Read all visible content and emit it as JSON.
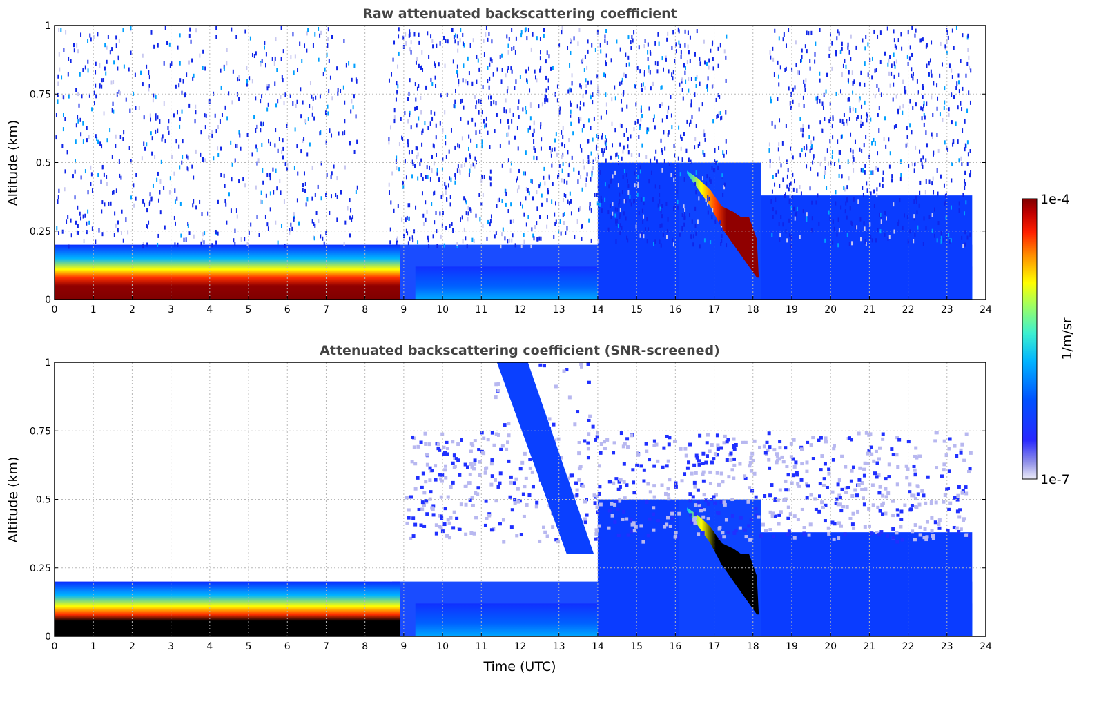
{
  "chart_data": [
    {
      "type": "heatmap",
      "title": "Raw attenuated backscattering coefficient",
      "xlabel": "",
      "ylabel": "Altitude (km)",
      "xlim": [
        0,
        24
      ],
      "ylim": [
        0,
        1
      ],
      "xticks": [
        "0",
        "1",
        "2",
        "3",
        "4",
        "5",
        "6",
        "7",
        "8",
        "9",
        "10",
        "11",
        "12",
        "13",
        "14",
        "15",
        "16",
        "17",
        "18",
        "19",
        "20",
        "21",
        "22",
        "23",
        "24"
      ],
      "yticks": [
        "0",
        "0.25",
        "0.5",
        "0.75",
        "1"
      ],
      "grid": true,
      "data_end_time": 23.65,
      "features": [
        {
          "name": "surface layer",
          "time": [
            0,
            8.8
          ],
          "altitude": [
            0.02,
            0.16
          ],
          "level": "1e-4"
        },
        {
          "name": "cloud layer",
          "time": [
            16.3,
            18.2
          ],
          "altitude_top": [
            0.45,
            0.2
          ],
          "level": "1e-4"
        },
        {
          "name": "noise region",
          "time": [
            8.7,
            23.65
          ],
          "altitude": [
            0.2,
            1
          ],
          "level": "1e-6"
        }
      ]
    },
    {
      "type": "heatmap",
      "title": "Attenuated backscattering coefficient (SNR-screened)",
      "xlabel": "Time (UTC)",
      "ylabel": "Altitude (km)",
      "xlim": [
        0,
        24
      ],
      "ylim": [
        0,
        1
      ],
      "xticks": [
        "0",
        "1",
        "2",
        "3",
        "4",
        "5",
        "6",
        "7",
        "8",
        "9",
        "10",
        "11",
        "12",
        "13",
        "14",
        "15",
        "16",
        "17",
        "18",
        "19",
        "20",
        "21",
        "22",
        "23",
        "24"
      ],
      "yticks": [
        "0",
        "0.25",
        "0.5",
        "0.75",
        "1"
      ],
      "grid": true,
      "data_end_time": 23.65,
      "features": [
        {
          "name": "surface layer (saturated)",
          "time": [
            0,
            9
          ],
          "altitude": [
            0,
            0.1
          ],
          "level": ">1e-4"
        },
        {
          "name": "cloud layer (saturated)",
          "time": [
            16.4,
            18.2
          ],
          "altitude_top": [
            0.45,
            0.2
          ],
          "level": ">1e-4"
        },
        {
          "name": "plume",
          "time": [
            11.3,
            14
          ],
          "altitude": [
            0.3,
            1
          ],
          "level": "1e-6"
        }
      ]
    }
  ],
  "colorbar": {
    "label": "1/m/sr",
    "max_label": "1e-4",
    "min_label": "1e-7",
    "scale": "log",
    "range": [
      1e-07,
      0.0001
    ],
    "colormap": [
      "#ececf8",
      "#9090e8",
      "#2828ff",
      "#0050ff",
      "#00b4ff",
      "#3cf0d0",
      "#a0ff60",
      "#ffff00",
      "#ff8c00",
      "#ff2000",
      "#c00000",
      "#800000"
    ]
  }
}
